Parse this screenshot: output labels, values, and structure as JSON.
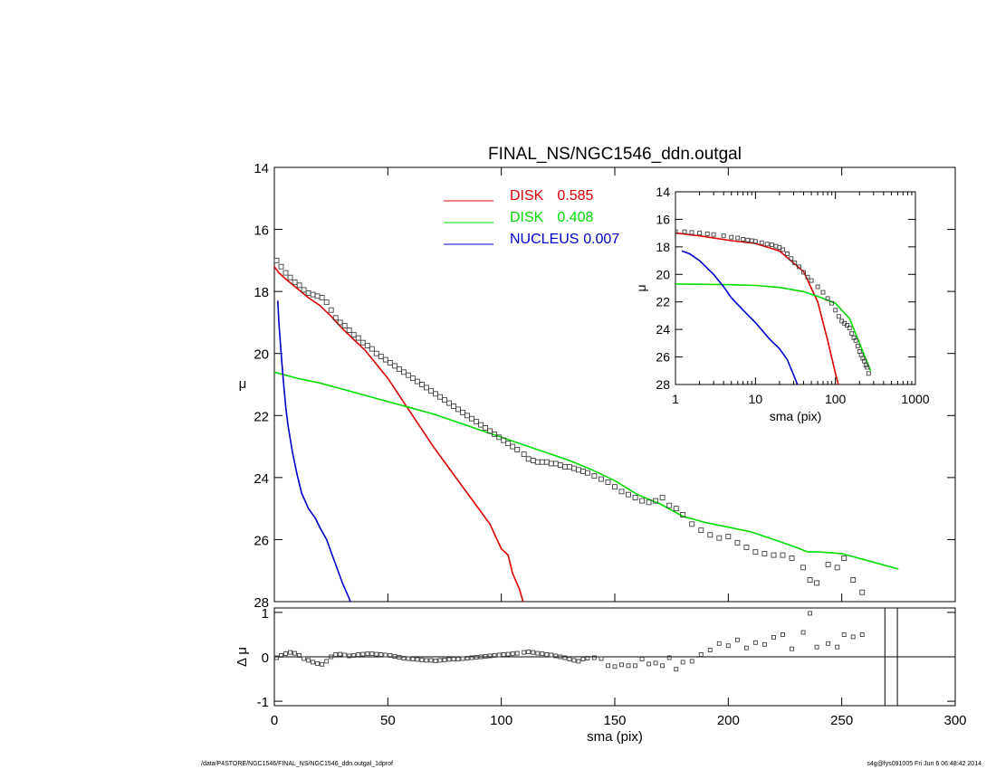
{
  "chart_data": [
    {
      "type": "scatter",
      "panel": "main",
      "title": "FINAL_NS/NGC1546_ddn.outgal",
      "ylabel": "μ",
      "xlim": [
        0,
        300
      ],
      "ylim": [
        28,
        14
      ],
      "y_inverted": true,
      "xticks": [
        0,
        50,
        100,
        150,
        200,
        250,
        300
      ],
      "yticks": [
        14,
        16,
        18,
        20,
        22,
        24,
        26,
        28
      ],
      "legend": [
        {
          "label": "DISK",
          "value": "0.585",
          "color": "#dd0000"
        },
        {
          "label": "DISK",
          "value": "0.408",
          "color": "#00dd00"
        },
        {
          "label": "NUCLEUS",
          "value": "0.007",
          "color": "#0000cc"
        }
      ],
      "legend_position": "top-center",
      "series": [
        {
          "name": "DISK 0.585",
          "kind": "line",
          "color": "#dd0000",
          "x": [
            0,
            2,
            5,
            10,
            15,
            20,
            25,
            30,
            40,
            50,
            60,
            70,
            80,
            90,
            95,
            100,
            103,
            105,
            108,
            110
          ],
          "y": [
            17.2,
            17.4,
            17.6,
            17.9,
            18.2,
            18.45,
            18.8,
            19.2,
            19.9,
            20.8,
            21.9,
            23.0,
            24.0,
            25.0,
            25.5,
            26.3,
            26.5,
            27.1,
            27.6,
            28.1
          ]
        },
        {
          "name": "DISK 0.408",
          "kind": "line",
          "color": "#00dd00",
          "x": [
            0,
            10,
            20,
            30,
            40,
            50,
            60,
            70,
            80,
            90,
            100,
            110,
            120,
            130,
            140,
            150,
            160,
            170,
            180,
            190,
            200,
            210,
            220,
            230,
            235,
            240,
            250,
            260,
            275
          ],
          "y": [
            20.6,
            20.8,
            20.95,
            21.15,
            21.35,
            21.55,
            21.75,
            21.95,
            22.2,
            22.45,
            22.7,
            22.95,
            23.2,
            23.45,
            23.75,
            24.1,
            24.55,
            24.85,
            25.25,
            25.45,
            25.6,
            25.75,
            26.0,
            26.25,
            26.4,
            26.4,
            26.45,
            26.65,
            26.95
          ]
        },
        {
          "name": "NUCLEUS 0.007",
          "kind": "line",
          "color": "#0000cc",
          "x": [
            1.5,
            2,
            3,
            4,
            5,
            6,
            8,
            10,
            12,
            15,
            18,
            20,
            23,
            26,
            30,
            33,
            34
          ],
          "y": [
            18.3,
            19.0,
            20.0,
            20.9,
            21.7,
            22.3,
            23.2,
            23.9,
            24.5,
            25.0,
            25.3,
            25.6,
            26.0,
            26.6,
            27.4,
            27.9,
            28.1
          ]
        },
        {
          "name": "data",
          "kind": "points",
          "color": "#404040",
          "x": [
            1,
            3,
            5,
            7,
            9,
            11,
            13,
            15,
            17,
            19,
            21,
            23,
            25,
            27,
            29,
            31,
            33,
            35,
            37,
            39,
            41,
            43,
            45,
            47,
            49,
            51,
            53,
            55,
            57,
            59,
            61,
            63,
            65,
            67,
            69,
            71,
            73,
            75,
            77,
            79,
            81,
            83,
            85,
            87,
            89,
            91,
            93,
            95,
            97,
            99,
            101,
            103,
            105,
            107,
            110,
            112,
            114,
            116,
            118,
            120,
            122,
            124,
            126,
            128,
            130,
            132,
            134,
            136,
            138,
            141,
            144,
            147,
            150,
            153,
            156,
            159,
            162,
            165,
            168,
            171,
            174,
            177,
            180,
            184,
            188,
            192,
            196,
            200,
            204,
            208,
            212,
            216,
            220,
            224,
            228,
            233,
            236,
            239,
            244,
            248,
            251,
            255,
            259
          ],
          "y": [
            17.0,
            17.2,
            17.4,
            17.55,
            17.7,
            17.8,
            17.95,
            18.05,
            18.1,
            18.15,
            18.2,
            18.35,
            18.6,
            18.85,
            19.0,
            19.1,
            19.25,
            19.4,
            19.5,
            19.65,
            19.75,
            19.85,
            20.0,
            20.1,
            20.2,
            20.3,
            20.4,
            20.5,
            20.6,
            20.7,
            20.8,
            20.9,
            21.0,
            21.1,
            21.2,
            21.3,
            21.4,
            21.5,
            21.6,
            21.7,
            21.8,
            21.9,
            22.0,
            22.1,
            22.2,
            22.3,
            22.4,
            22.5,
            22.6,
            22.7,
            22.8,
            22.9,
            23.0,
            23.1,
            23.25,
            23.4,
            23.45,
            23.5,
            23.5,
            23.5,
            23.55,
            23.55,
            23.6,
            23.65,
            23.65,
            23.7,
            23.75,
            23.8,
            23.85,
            23.95,
            24.05,
            24.15,
            24.3,
            24.45,
            24.55,
            24.65,
            24.75,
            24.8,
            24.75,
            24.65,
            24.9,
            25.0,
            25.2,
            25.5,
            25.7,
            25.85,
            25.95,
            25.9,
            26.1,
            26.25,
            26.4,
            26.45,
            26.5,
            26.5,
            26.6,
            26.9,
            27.3,
            27.4,
            26.8,
            26.9,
            26.6,
            27.3,
            27.7
          ]
        }
      ]
    },
    {
      "type": "scatter",
      "panel": "residual",
      "xlabel": "sma (pix)",
      "ylabel": "Δ μ",
      "xlim": [
        0,
        300
      ],
      "ylim": [
        -1.1,
        1.1
      ],
      "xticks": [
        0,
        50,
        100,
        150,
        200,
        250,
        300
      ],
      "yticks": [
        -1,
        0,
        1
      ],
      "zero_line": true,
      "vertical_lines_x": [
        269,
        274.5
      ],
      "series": [
        {
          "name": "residual",
          "kind": "points",
          "color": "#404040",
          "x": [
            1,
            3,
            5,
            7,
            9,
            11,
            13,
            15,
            17,
            19,
            21,
            23,
            25,
            27,
            29,
            31,
            33,
            35,
            37,
            39,
            41,
            43,
            45,
            47,
            49,
            51,
            53,
            55,
            57,
            59,
            61,
            63,
            65,
            67,
            69,
            71,
            73,
            75,
            77,
            79,
            81,
            83,
            85,
            87,
            89,
            91,
            93,
            95,
            97,
            99,
            101,
            103,
            105,
            107,
            110,
            112,
            114,
            116,
            118,
            120,
            122,
            124,
            126,
            128,
            130,
            132,
            134,
            136,
            138,
            141,
            144,
            147,
            150,
            153,
            156,
            159,
            162,
            165,
            168,
            171,
            174,
            177,
            180,
            184,
            188,
            192,
            196,
            200,
            204,
            208,
            212,
            216,
            220,
            224,
            228,
            233,
            236,
            239,
            244,
            248,
            251,
            255,
            259
          ],
          "y": [
            -0.02,
            0.03,
            0.07,
            0.1,
            0.08,
            0.03,
            -0.04,
            -0.08,
            -0.12,
            -0.15,
            -0.17,
            -0.1,
            0.0,
            0.05,
            0.06,
            0.04,
            0.02,
            0.03,
            0.05,
            0.06,
            0.07,
            0.07,
            0.06,
            0.05,
            0.04,
            0.03,
            0.01,
            -0.01,
            -0.03,
            -0.04,
            -0.05,
            -0.06,
            -0.07,
            -0.08,
            -0.08,
            -0.09,
            -0.08,
            -0.07,
            -0.06,
            -0.05,
            -0.05,
            -0.04,
            -0.03,
            -0.02,
            -0.01,
            0.0,
            0.01,
            0.02,
            0.03,
            0.04,
            0.05,
            0.06,
            0.07,
            0.08,
            0.1,
            0.11,
            0.1,
            0.08,
            0.07,
            0.05,
            0.04,
            0.02,
            0.0,
            -0.02,
            -0.05,
            -0.08,
            -0.1,
            -0.05,
            -0.03,
            -0.02,
            -0.04,
            -0.2,
            -0.22,
            -0.18,
            -0.2,
            -0.2,
            -0.05,
            -0.16,
            -0.14,
            -0.2,
            -0.02,
            -0.28,
            -0.12,
            -0.1,
            0.05,
            0.15,
            0.3,
            0.25,
            0.38,
            0.2,
            0.32,
            0.28,
            0.44,
            0.5,
            0.18,
            0.55,
            0.98,
            0.22,
            0.3,
            0.22,
            0.5,
            0.45,
            0.5
          ]
        }
      ]
    },
    {
      "type": "scatter",
      "panel": "inset",
      "xlabel": "sma (pix)",
      "ylabel": "μ",
      "xscale": "log",
      "xlim": [
        1,
        1000
      ],
      "ylim": [
        28,
        14
      ],
      "y_inverted": true,
      "xticks": [
        1,
        10,
        100,
        1000
      ],
      "yticks": [
        14,
        16,
        18,
        20,
        22,
        24,
        26,
        28
      ],
      "series": [
        {
          "name": "DISK 0.585",
          "kind": "line",
          "color": "#dd0000",
          "x": [
            1,
            2,
            5,
            10,
            20,
            40,
            60,
            80,
            100,
            110
          ],
          "y": [
            17.0,
            17.2,
            17.55,
            17.75,
            18.3,
            19.8,
            22.0,
            24.8,
            27.2,
            28.1
          ]
        },
        {
          "name": "DISK 0.408",
          "kind": "line",
          "color": "#00dd00",
          "x": [
            1,
            5,
            10,
            20,
            40,
            60,
            100,
            150,
            200,
            275
          ],
          "y": [
            20.7,
            20.75,
            20.8,
            20.95,
            21.25,
            21.6,
            22.1,
            23.2,
            25.0,
            27.0
          ]
        },
        {
          "name": "NUCLEUS 0.007",
          "kind": "line",
          "color": "#0000cc",
          "x": [
            1.2,
            1.5,
            2,
            3,
            4,
            5,
            7,
            10,
            15,
            20,
            25,
            30,
            34
          ],
          "y": [
            18.3,
            18.5,
            19.0,
            20.0,
            20.9,
            21.7,
            22.6,
            23.5,
            24.7,
            25.4,
            26.2,
            27.3,
            28.1
          ]
        },
        {
          "name": "data",
          "kind": "points",
          "color": "#404040",
          "x": [
            1,
            1.3,
            1.6,
            2,
            2.5,
            3,
            4,
            5,
            6,
            7,
            8,
            9,
            10,
            12,
            14,
            16,
            18,
            20,
            22,
            25,
            28,
            31,
            35,
            40,
            45,
            50,
            60,
            70,
            80,
            90,
            100,
            110,
            120,
            130,
            140,
            150,
            160,
            170,
            180,
            190,
            200,
            210,
            220,
            230,
            240,
            250,
            260
          ],
          "y": [
            16.9,
            16.9,
            16.95,
            17.0,
            17.05,
            17.1,
            17.2,
            17.3,
            17.35,
            17.45,
            17.5,
            17.55,
            17.6,
            17.7,
            17.8,
            17.85,
            17.95,
            18.05,
            18.2,
            18.5,
            18.85,
            19.15,
            19.45,
            19.85,
            20.2,
            20.45,
            20.9,
            21.3,
            21.75,
            22.1,
            22.6,
            23.05,
            23.4,
            23.55,
            23.7,
            23.9,
            24.3,
            24.6,
            24.8,
            25.2,
            25.6,
            25.85,
            26.1,
            26.3,
            26.6,
            26.75,
            27.2
          ]
        }
      ]
    }
  ],
  "footer": {
    "left": "/data/P4STORE/NGC1546/FINAL_NS/NGC1546_ddn.outgal_1dprof",
    "right": "s4g@fys091005  Fri Jun  6 06:48:42 2014"
  }
}
